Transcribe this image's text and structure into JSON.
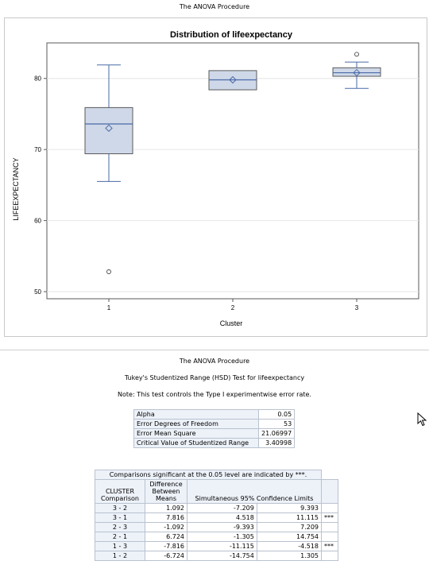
{
  "page": {
    "proc_title": "The ANOVA Procedure",
    "proc_title_2": "The ANOVA Procedure",
    "test_title": "Tukey's Studentized Range (HSD) Test for lifeexpectancy",
    "note": "Note: This test controls the Type I experimentwise error rate."
  },
  "chart_data": {
    "type": "box",
    "title": "Distribution of lifeexpectancy",
    "xlabel": "Cluster",
    "ylabel": "LIFEEXPECTANCY",
    "ylim": [
      49,
      85
    ],
    "yticks": [
      50,
      60,
      70,
      80
    ],
    "categories": [
      "1",
      "2",
      "3"
    ],
    "boxes": [
      {
        "category": "1",
        "whisker_low": 65.5,
        "q1": 69.4,
        "median": 73.6,
        "q3": 75.9,
        "whisker_high": 81.9,
        "mean": 73.0,
        "outliers": [
          52.8
        ]
      },
      {
        "category": "2",
        "whisker_low": 78.4,
        "q1": 78.4,
        "median": 79.8,
        "q3": 81.1,
        "whisker_high": 81.1,
        "mean": 79.8,
        "outliers": []
      },
      {
        "category": "3",
        "whisker_low": 78.6,
        "q1": 80.3,
        "median": 80.8,
        "q3": 81.5,
        "whisker_high": 82.3,
        "mean": 80.8,
        "outliers": [
          83.4
        ]
      }
    ],
    "grid": true,
    "colors": {
      "box_fill": "#cfd8e8",
      "box_line": "#4a6aa8",
      "outline": "#5a5a5a"
    }
  },
  "summary": {
    "rows": [
      {
        "label": "Alpha",
        "value": "0.05"
      },
      {
        "label": "Error Degrees of Freedom",
        "value": "53"
      },
      {
        "label": "Error Mean Square",
        "value": "21.06997"
      },
      {
        "label": "Critical Value of Studentized Range",
        "value": "3.40998"
      }
    ]
  },
  "comparisons": {
    "caption": "Comparisons significant at the 0.05 level are indicated by ***.",
    "headers": [
      "CLUSTER Comparison",
      "Difference Between Means",
      "Simultaneous 95% Confidence Limits",
      ""
    ],
    "rows": [
      {
        "cmp": "3 - 2",
        "diff": "1.092",
        "lo": "-7.209",
        "hi": "9.393",
        "sig": ""
      },
      {
        "cmp": "3 - 1",
        "diff": "7.816",
        "lo": "4.518",
        "hi": "11.115",
        "sig": "***"
      },
      {
        "cmp": "2 - 3",
        "diff": "-1.092",
        "lo": "-9.393",
        "hi": "7.209",
        "sig": ""
      },
      {
        "cmp": "2 - 1",
        "diff": "6.724",
        "lo": "-1.305",
        "hi": "14.754",
        "sig": ""
      },
      {
        "cmp": "1 - 3",
        "diff": "-7.816",
        "lo": "-11.115",
        "hi": "-4.518",
        "sig": "***"
      },
      {
        "cmp": "1 - 2",
        "diff": "-6.724",
        "lo": "-14.754",
        "hi": "1.305",
        "sig": ""
      }
    ]
  }
}
